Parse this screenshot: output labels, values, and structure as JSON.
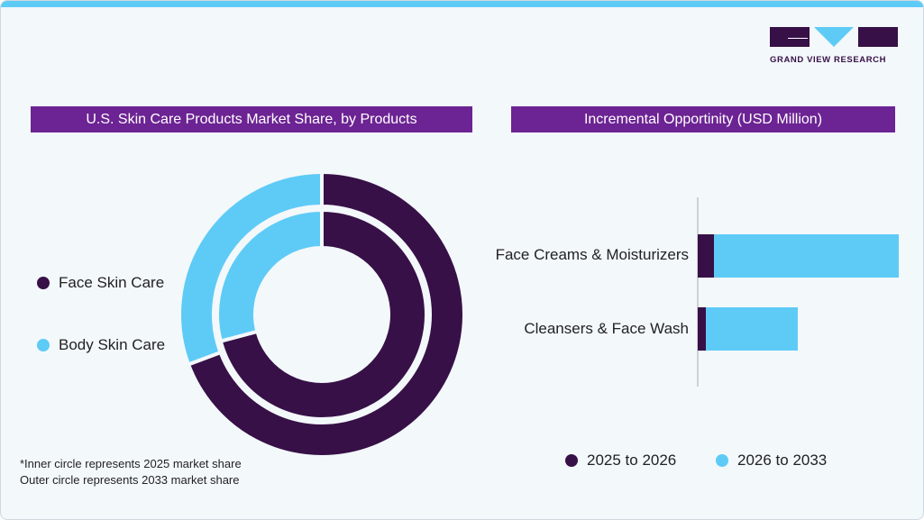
{
  "brand": {
    "name": "GRAND VIEW RESEARCH"
  },
  "colors": {
    "face": "#371047",
    "body": "#5ecbf6",
    "header": "#6c2393"
  },
  "left_header": "U.S. Skin Care Products Market Share, by Products",
  "right_header": "Incremental Opportinity (USD Million)",
  "notes": [
    "*Inner circle represents 2025 market share",
    "Outer circle represents 2033 market share"
  ],
  "chart_data": [
    {
      "type": "pie",
      "title": "U.S. Skin Care Products Market Share, by Products",
      "legend": [
        "Face Skin Care",
        "Body Skin Care"
      ],
      "legend_placement": "left",
      "rings": [
        {
          "name": "2025",
          "ring": "inner",
          "values": [
            70.9,
            29.1
          ]
        },
        {
          "name": "2033",
          "ring": "outer",
          "values": [
            69.3,
            30.7
          ]
        }
      ]
    },
    {
      "type": "bar",
      "orientation": "horizontal",
      "stacked": true,
      "title": "Incremental Opportinity (USD Million)",
      "categories": [
        "Face Creams & Moisturizers",
        "Cleansers & Face Wash"
      ],
      "series": [
        {
          "name": "2025 to 2026",
          "values": [
            18,
            9
          ]
        },
        {
          "name": "2026 to 2033",
          "values": [
            205,
            102
          ]
        }
      ],
      "legend_placement": "bottom",
      "grid": false
    }
  ]
}
